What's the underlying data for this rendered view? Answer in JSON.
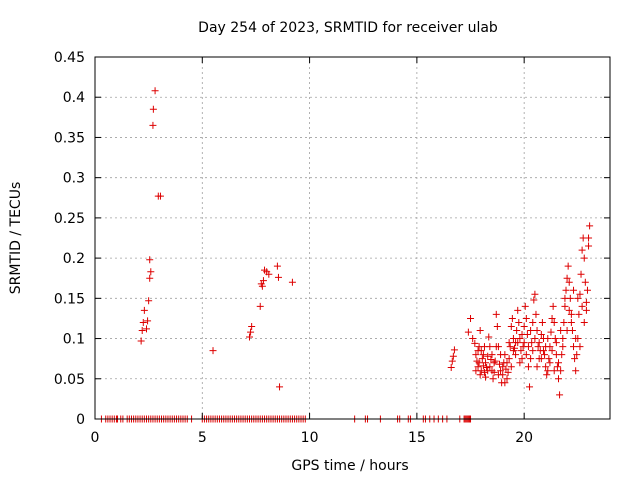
{
  "chart_data": {
    "type": "scatter",
    "title": "Day 254 of 2023, SRMTID for receiver ulab",
    "xlabel": "GPS time / hours",
    "ylabel": "SRMTID / TECUs",
    "xlim": [
      0,
      24
    ],
    "ylim": [
      0,
      0.45
    ],
    "xticks": [
      0,
      5,
      10,
      15,
      20
    ],
    "xtick_labels": [
      "0",
      "5",
      "10",
      "15",
      "20"
    ],
    "yticks": [
      0,
      0.05,
      0.1,
      0.15,
      0.2,
      0.25,
      0.3,
      0.35,
      0.4,
      0.45
    ],
    "ytick_labels": [
      "0",
      "0.05",
      "0.1",
      "0.15",
      "0.2",
      "0.25",
      "0.3",
      "0.35",
      "0.4",
      "0.45"
    ],
    "grid": true,
    "marker": "+",
    "color": "#dd0000",
    "series": [
      {
        "name": "SRMTID",
        "points": [
          [
            0.3,
            0
          ],
          [
            0.5,
            0
          ],
          [
            0.6,
            0
          ],
          [
            0.7,
            0
          ],
          [
            0.8,
            0
          ],
          [
            0.9,
            0
          ],
          [
            1.0,
            0
          ],
          [
            1.05,
            0
          ],
          [
            1.2,
            0
          ],
          [
            1.3,
            0
          ],
          [
            1.5,
            0
          ],
          [
            1.6,
            0
          ],
          [
            1.7,
            0
          ],
          [
            1.8,
            0
          ],
          [
            1.9,
            0
          ],
          [
            2.0,
            0
          ],
          [
            2.1,
            0
          ],
          [
            2.2,
            0
          ],
          [
            2.3,
            0
          ],
          [
            2.4,
            0
          ],
          [
            2.5,
            0
          ],
          [
            2.6,
            0
          ],
          [
            2.7,
            0
          ],
          [
            2.8,
            0
          ],
          [
            2.9,
            0
          ],
          [
            3.0,
            0
          ],
          [
            3.1,
            0
          ],
          [
            3.2,
            0
          ],
          [
            3.3,
            0
          ],
          [
            3.4,
            0
          ],
          [
            3.5,
            0
          ],
          [
            3.6,
            0
          ],
          [
            3.7,
            0
          ],
          [
            3.8,
            0
          ],
          [
            3.9,
            0
          ],
          [
            4.0,
            0
          ],
          [
            4.1,
            0
          ],
          [
            4.2,
            0
          ],
          [
            4.3,
            0
          ],
          [
            4.5,
            0
          ],
          [
            5.0,
            0
          ],
          [
            5.1,
            0
          ],
          [
            5.2,
            0
          ],
          [
            5.3,
            0
          ],
          [
            5.4,
            0
          ],
          [
            5.5,
            0
          ],
          [
            5.6,
            0
          ],
          [
            5.7,
            0
          ],
          [
            5.8,
            0
          ],
          [
            5.9,
            0
          ],
          [
            6.0,
            0
          ],
          [
            6.1,
            0
          ],
          [
            6.2,
            0
          ],
          [
            6.3,
            0
          ],
          [
            6.4,
            0
          ],
          [
            6.5,
            0
          ],
          [
            6.6,
            0
          ],
          [
            6.7,
            0
          ],
          [
            6.8,
            0
          ],
          [
            6.9,
            0
          ],
          [
            7.0,
            0
          ],
          [
            7.1,
            0
          ],
          [
            7.2,
            0
          ],
          [
            7.3,
            0
          ],
          [
            7.4,
            0
          ],
          [
            7.5,
            0
          ],
          [
            7.6,
            0
          ],
          [
            7.7,
            0
          ],
          [
            7.8,
            0
          ],
          [
            7.9,
            0
          ],
          [
            8.0,
            0
          ],
          [
            8.1,
            0
          ],
          [
            8.2,
            0
          ],
          [
            8.3,
            0
          ],
          [
            8.4,
            0
          ],
          [
            8.5,
            0
          ],
          [
            8.6,
            0
          ],
          [
            8.7,
            0
          ],
          [
            8.8,
            0
          ],
          [
            8.9,
            0
          ],
          [
            9.0,
            0
          ],
          [
            9.1,
            0
          ],
          [
            9.2,
            0
          ],
          [
            9.3,
            0
          ],
          [
            9.4,
            0
          ],
          [
            9.5,
            0
          ],
          [
            9.6,
            0
          ],
          [
            9.7,
            0
          ],
          [
            9.8,
            0
          ],
          [
            12.1,
            0
          ],
          [
            12.6,
            0
          ],
          [
            12.7,
            0
          ],
          [
            13.3,
            0
          ],
          [
            14.1,
            0
          ],
          [
            14.2,
            0
          ],
          [
            14.6,
            0
          ],
          [
            14.7,
            0
          ],
          [
            15.3,
            0
          ],
          [
            15.4,
            0
          ],
          [
            15.6,
            0
          ],
          [
            15.8,
            0
          ],
          [
            16.0,
            0
          ],
          [
            16.2,
            0
          ],
          [
            16.4,
            0
          ],
          [
            17.0,
            0
          ],
          [
            17.2,
            0
          ],
          [
            17.25,
            0
          ],
          [
            17.3,
            0
          ],
          [
            17.35,
            0
          ],
          [
            17.4,
            0
          ],
          [
            17.45,
            0
          ],
          [
            17.5,
            0
          ],
          [
            2.15,
            0.097
          ],
          [
            2.2,
            0.11
          ],
          [
            2.25,
            0.12
          ],
          [
            2.3,
            0.135
          ],
          [
            2.4,
            0.112
          ],
          [
            2.45,
            0.122
          ],
          [
            2.5,
            0.147
          ],
          [
            2.55,
            0.175
          ],
          [
            2.6,
            0.183
          ],
          [
            2.55,
            0.198
          ],
          [
            2.7,
            0.365
          ],
          [
            2.72,
            0.385
          ],
          [
            2.8,
            0.408
          ],
          [
            2.95,
            0.277
          ],
          [
            3.05,
            0.277
          ],
          [
            5.5,
            0.085
          ],
          [
            7.2,
            0.102
          ],
          [
            7.25,
            0.108
          ],
          [
            7.3,
            0.115
          ],
          [
            7.7,
            0.14
          ],
          [
            7.75,
            0.168
          ],
          [
            7.8,
            0.165
          ],
          [
            7.85,
            0.172
          ],
          [
            7.9,
            0.185
          ],
          [
            8.0,
            0.183
          ],
          [
            8.1,
            0.18
          ],
          [
            8.5,
            0.19
          ],
          [
            8.55,
            0.176
          ],
          [
            8.6,
            0.04
          ],
          [
            9.2,
            0.17
          ],
          [
            16.6,
            0.064
          ],
          [
            16.65,
            0.072
          ],
          [
            16.7,
            0.078
          ],
          [
            16.75,
            0.086
          ],
          [
            17.4,
            0.108
          ],
          [
            17.5,
            0.125
          ],
          [
            17.6,
            0.1
          ],
          [
            17.7,
            0.094
          ],
          [
            17.75,
            0.08
          ],
          [
            17.8,
            0.072
          ],
          [
            17.85,
            0.065
          ],
          [
            17.9,
            0.09
          ],
          [
            17.95,
            0.11
          ],
          [
            18.0,
            0.085
          ],
          [
            18.05,
            0.075
          ],
          [
            18.1,
            0.066
          ],
          [
            18.15,
            0.058
          ],
          [
            18.2,
            0.052
          ],
          [
            18.25,
            0.064
          ],
          [
            18.3,
            0.078
          ],
          [
            18.35,
            0.102
          ],
          [
            18.4,
            0.09
          ],
          [
            18.45,
            0.074
          ],
          [
            18.5,
            0.06
          ],
          [
            18.55,
            0.05
          ],
          [
            18.6,
            0.058
          ],
          [
            18.65,
            0.072
          ],
          [
            18.7,
            0.13
          ],
          [
            18.75,
            0.115
          ],
          [
            18.8,
            0.09
          ],
          [
            18.85,
            0.068
          ],
          [
            18.9,
            0.06
          ],
          [
            18.95,
            0.045
          ],
          [
            19.0,
            0.055
          ],
          [
            19.05,
            0.07
          ],
          [
            19.1,
            0.08
          ],
          [
            19.15,
            0.062
          ],
          [
            19.2,
            0.05
          ],
          [
            19.25,
            0.058
          ],
          [
            19.3,
            0.075
          ],
          [
            19.35,
            0.09
          ],
          [
            19.4,
            0.115
          ],
          [
            19.45,
            0.125
          ],
          [
            19.5,
            0.1
          ],
          [
            19.55,
            0.088
          ],
          [
            19.6,
            0.095
          ],
          [
            19.65,
            0.11
          ],
          [
            19.7,
            0.135
          ],
          [
            19.75,
            0.12
          ],
          [
            19.8,
            0.1
          ],
          [
            19.85,
            0.085
          ],
          [
            19.9,
            0.075
          ],
          [
            19.95,
            0.09
          ],
          [
            20.0,
            0.115
          ],
          [
            20.05,
            0.14
          ],
          [
            20.1,
            0.125
          ],
          [
            20.15,
            0.105
          ],
          [
            20.2,
            0.09
          ],
          [
            20.25,
            0.04
          ],
          [
            20.3,
            0.075
          ],
          [
            20.35,
            0.095
          ],
          [
            20.4,
            0.12
          ],
          [
            20.45,
            0.148
          ],
          [
            20.5,
            0.155
          ],
          [
            20.55,
            0.13
          ],
          [
            20.6,
            0.11
          ],
          [
            20.65,
            0.09
          ],
          [
            20.7,
            0.075
          ],
          [
            20.75,
            0.085
          ],
          [
            20.8,
            0.105
          ],
          [
            20.85,
            0.12
          ],
          [
            20.9,
            0.1
          ],
          [
            20.95,
            0.08
          ],
          [
            21.0,
            0.065
          ],
          [
            21.05,
            0.055
          ],
          [
            21.1,
            0.06
          ],
          [
            21.15,
            0.075
          ],
          [
            21.2,
            0.09
          ],
          [
            21.25,
            0.108
          ],
          [
            21.3,
            0.125
          ],
          [
            21.35,
            0.14
          ],
          [
            21.4,
            0.12
          ],
          [
            21.45,
            0.1
          ],
          [
            21.5,
            0.08
          ],
          [
            21.55,
            0.065
          ],
          [
            21.6,
            0.05
          ],
          [
            21.65,
            0.03
          ],
          [
            21.7,
            0.06
          ],
          [
            21.75,
            0.08
          ],
          [
            21.8,
            0.1
          ],
          [
            21.85,
            0.12
          ],
          [
            21.9,
            0.14
          ],
          [
            21.95,
            0.16
          ],
          [
            22.0,
            0.175
          ],
          [
            22.05,
            0.19
          ],
          [
            22.1,
            0.17
          ],
          [
            22.15,
            0.15
          ],
          [
            22.2,
            0.13
          ],
          [
            22.25,
            0.11
          ],
          [
            22.3,
            0.09
          ],
          [
            22.35,
            0.075
          ],
          [
            22.4,
            0.06
          ],
          [
            22.45,
            0.08
          ],
          [
            22.5,
            0.1
          ],
          [
            22.55,
            0.13
          ],
          [
            22.6,
            0.155
          ],
          [
            22.65,
            0.18
          ],
          [
            22.7,
            0.21
          ],
          [
            22.75,
            0.225
          ],
          [
            22.8,
            0.2
          ],
          [
            22.85,
            0.17
          ],
          [
            22.9,
            0.145
          ],
          [
            22.95,
            0.16
          ],
          [
            23.0,
            0.215
          ],
          [
            23.05,
            0.24
          ],
          [
            23.0,
            0.225
          ],
          [
            17.9,
            0.07
          ],
          [
            18.0,
            0.06
          ],
          [
            18.1,
            0.08
          ],
          [
            18.2,
            0.07
          ],
          [
            18.3,
            0.06
          ],
          [
            18.5,
            0.08
          ],
          [
            18.6,
            0.07
          ],
          [
            18.8,
            0.055
          ],
          [
            19.0,
            0.065
          ],
          [
            19.1,
            0.045
          ],
          [
            19.2,
            0.07
          ],
          [
            19.4,
            0.065
          ],
          [
            19.6,
            0.08
          ],
          [
            19.8,
            0.07
          ],
          [
            20.0,
            0.095
          ],
          [
            20.1,
            0.08
          ],
          [
            20.2,
            0.065
          ],
          [
            20.4,
            0.085
          ],
          [
            20.6,
            0.065
          ],
          [
            20.8,
            0.075
          ],
          [
            21.0,
            0.09
          ],
          [
            21.2,
            0.07
          ],
          [
            21.4,
            0.06
          ],
          [
            21.6,
            0.07
          ],
          [
            21.8,
            0.09
          ],
          [
            22.0,
            0.11
          ],
          [
            22.2,
            0.12
          ],
          [
            22.4,
            0.1
          ],
          [
            22.6,
            0.09
          ],
          [
            22.8,
            0.12
          ],
          [
            22.9,
            0.135
          ],
          [
            22.3,
            0.16
          ],
          [
            22.5,
            0.15
          ],
          [
            22.7,
            0.14
          ],
          [
            21.9,
            0.15
          ],
          [
            22.1,
            0.135
          ],
          [
            21.7,
            0.11
          ],
          [
            21.5,
            0.095
          ],
          [
            21.3,
            0.085
          ],
          [
            21.1,
            0.1
          ],
          [
            20.9,
            0.085
          ],
          [
            20.7,
            0.095
          ],
          [
            20.5,
            0.1
          ],
          [
            20.3,
            0.11
          ],
          [
            19.9,
            0.105
          ],
          [
            19.7,
            0.095
          ],
          [
            19.5,
            0.085
          ],
          [
            19.3,
            0.095
          ],
          [
            18.9,
            0.08
          ],
          [
            18.7,
            0.09
          ],
          [
            18.4,
            0.065
          ],
          [
            18.15,
            0.09
          ],
          [
            17.95,
            0.055
          ],
          [
            17.85,
            0.085
          ],
          [
            17.75,
            0.06
          ]
        ]
      }
    ]
  }
}
